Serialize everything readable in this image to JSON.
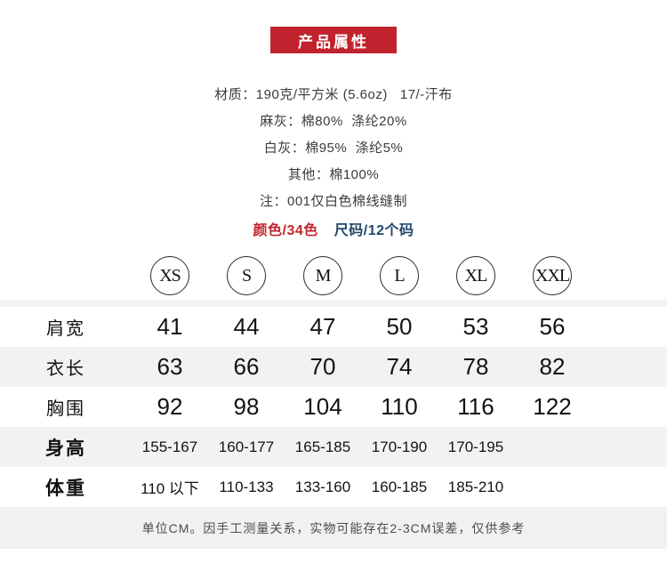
{
  "banner": {
    "title": "产品属性",
    "bg_color": "#c1232e"
  },
  "info_lines": [
    "材质：190克/平方米 (5.6oz)   17/-汗布",
    "麻灰：棉80%  涤纶20%",
    "白灰：棉95%  涤纶5%",
    "其他：棉100%",
    "注：001仅白色棉线缝制"
  ],
  "highlight": {
    "color_label": "颜色/34色",
    "color_hex": "#c1272d",
    "size_label": "尺码/12个码",
    "size_hex": "#22486b"
  },
  "size_chart": {
    "sizes": [
      "XS",
      "S",
      "M",
      "L",
      "XL",
      "XXL"
    ],
    "rows": [
      {
        "label": "肩宽",
        "values": [
          "41",
          "44",
          "47",
          "50",
          "53",
          "56"
        ]
      },
      {
        "label": "衣长",
        "values": [
          "63",
          "66",
          "70",
          "74",
          "78",
          "82"
        ]
      },
      {
        "label": "胸围",
        "values": [
          "92",
          "98",
          "104",
          "110",
          "116",
          "122"
        ]
      },
      {
        "label": "身高",
        "values": [
          "155-167",
          "160-177",
          "165-185",
          "170-190",
          "170-195",
          ""
        ]
      },
      {
        "label": "体重",
        "values": [
          "110 以下",
          "110-133",
          "133-160",
          "160-185",
          "185-210",
          ""
        ]
      }
    ]
  },
  "footer_note": "单位CM。因手工测量关系，实物可能存在2-3CM误差，仅供参考"
}
